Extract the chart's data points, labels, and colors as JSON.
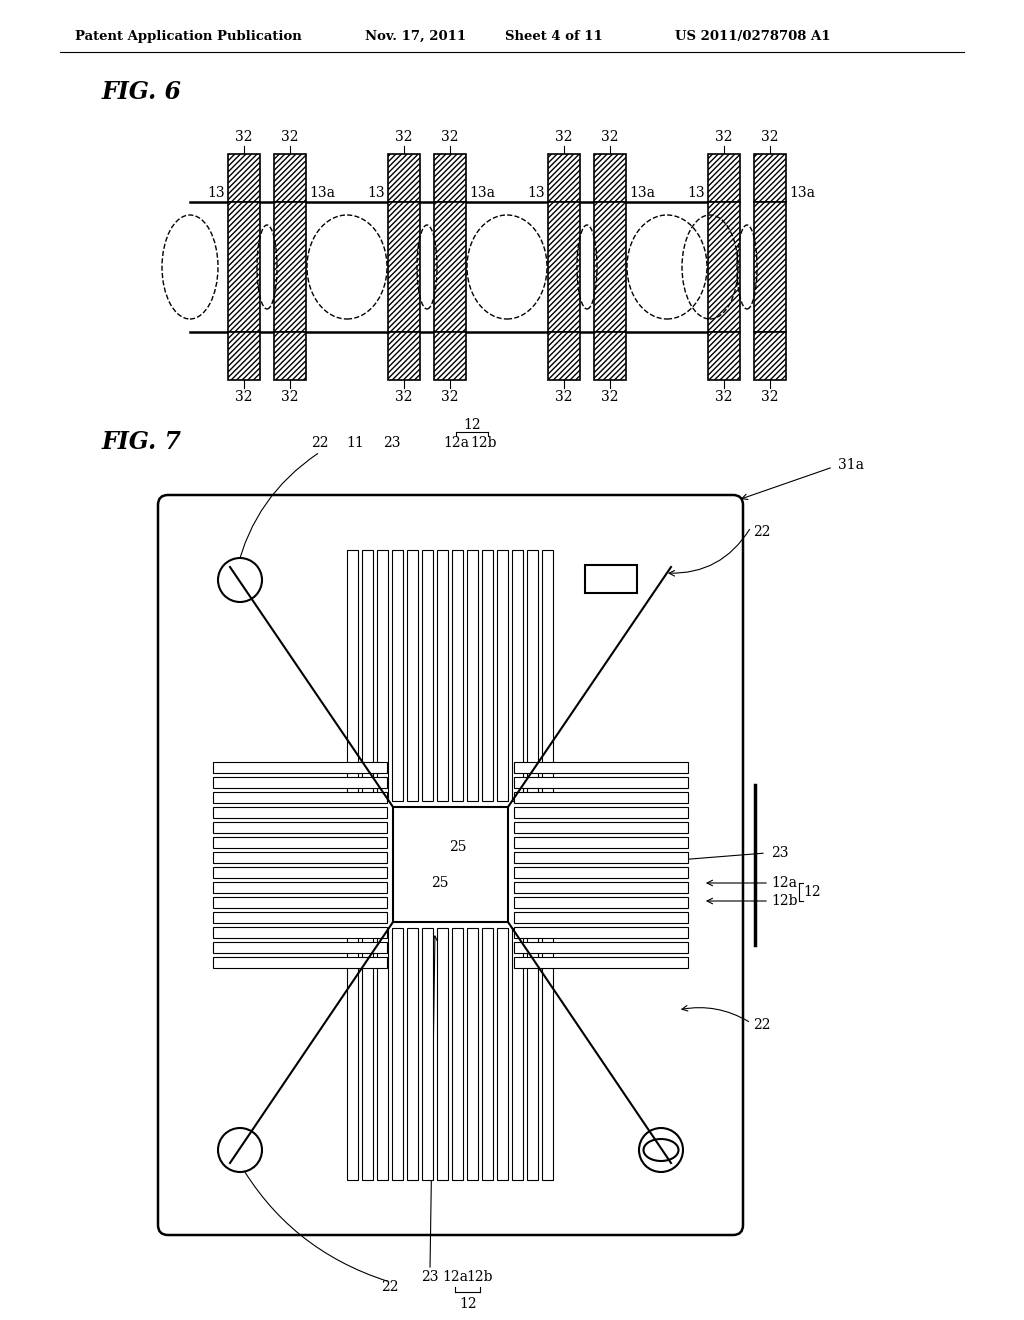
{
  "bg_color": "#ffffff",
  "header_text": "Patent Application Publication",
  "header_date": "Nov. 17, 2011",
  "header_sheet": "Sheet 4 of 11",
  "header_patent": "US 2011/0278708 A1",
  "fig6_label": "FIG. 6",
  "fig7_label": "FIG. 7"
}
